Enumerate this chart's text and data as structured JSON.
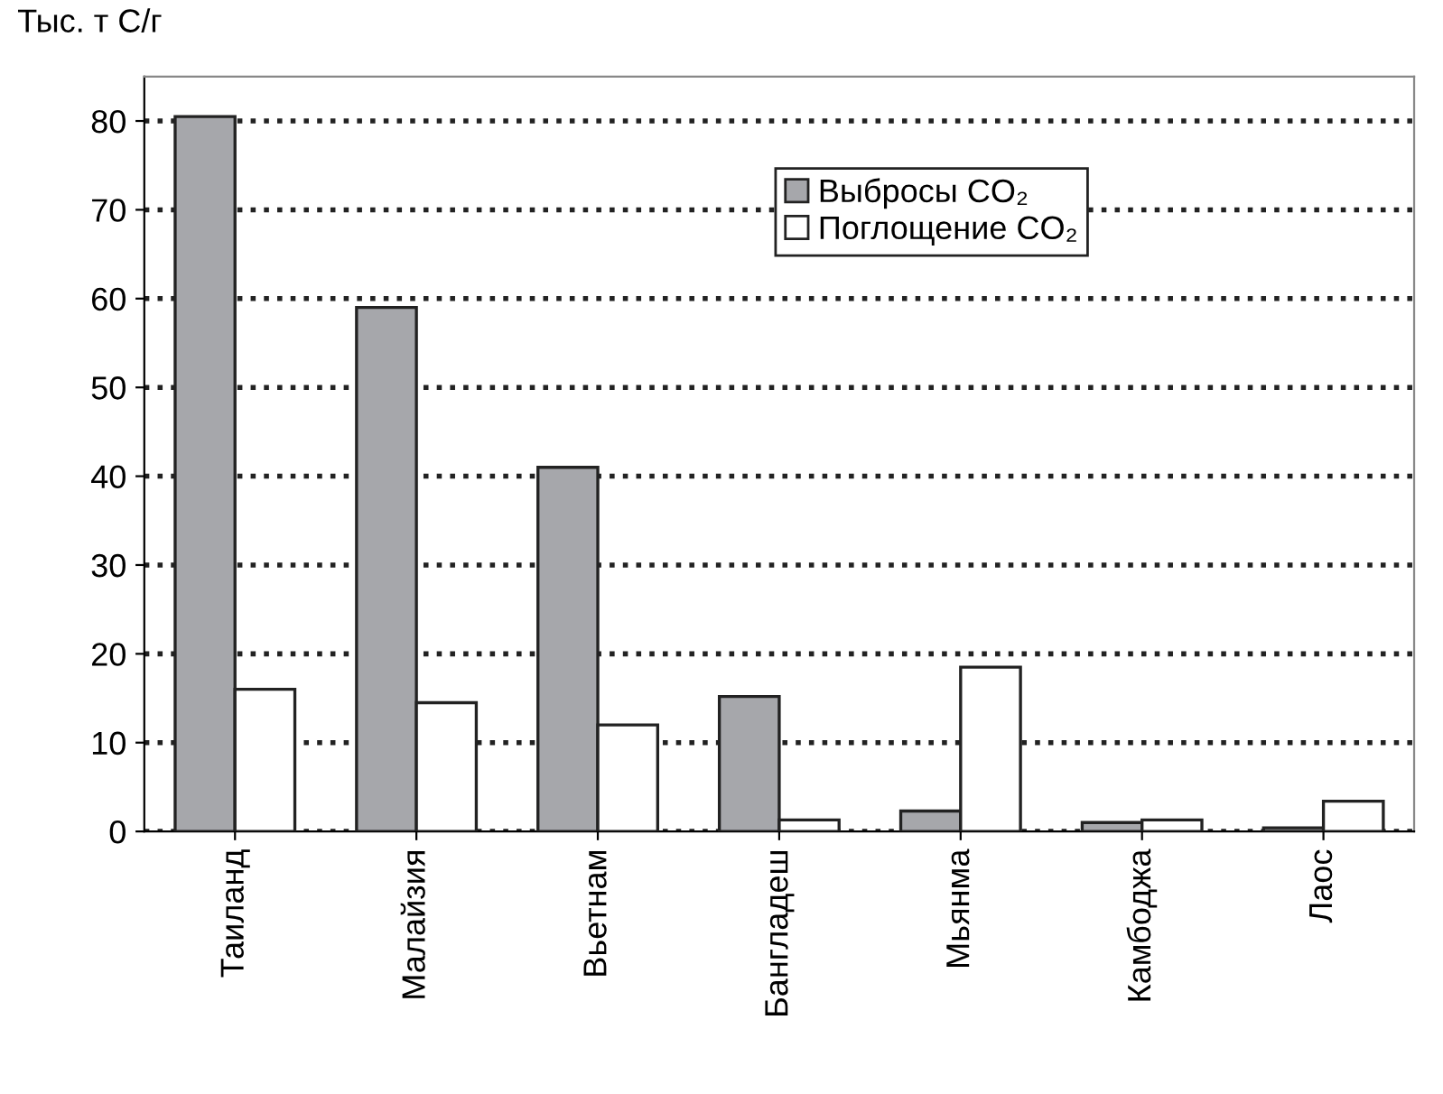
{
  "chart_data": {
    "type": "bar",
    "ylabel": "Тыс. т С/г",
    "categories": [
      "Таиланд",
      "Малайзия",
      "Вьетнам",
      "Бангладеш",
      "Мьянма",
      "Камбоджа",
      "Лаос"
    ],
    "series": [
      {
        "name": "Выбросы CO₂",
        "color": "#a6a7ab",
        "values": [
          80.5,
          59,
          41,
          15.2,
          2.3,
          1.0,
          0.4
        ]
      },
      {
        "name": "Поглощение CO₂",
        "color": "#ffffff",
        "values": [
          16,
          14.5,
          12,
          1.3,
          18.5,
          1.3,
          3.4
        ]
      }
    ],
    "ylim": [
      0,
      85
    ],
    "yticks": [
      0,
      10,
      20,
      30,
      40,
      50,
      60,
      70,
      80
    ],
    "grid": "y",
    "legend": "top",
    "line_style": "dotted"
  }
}
